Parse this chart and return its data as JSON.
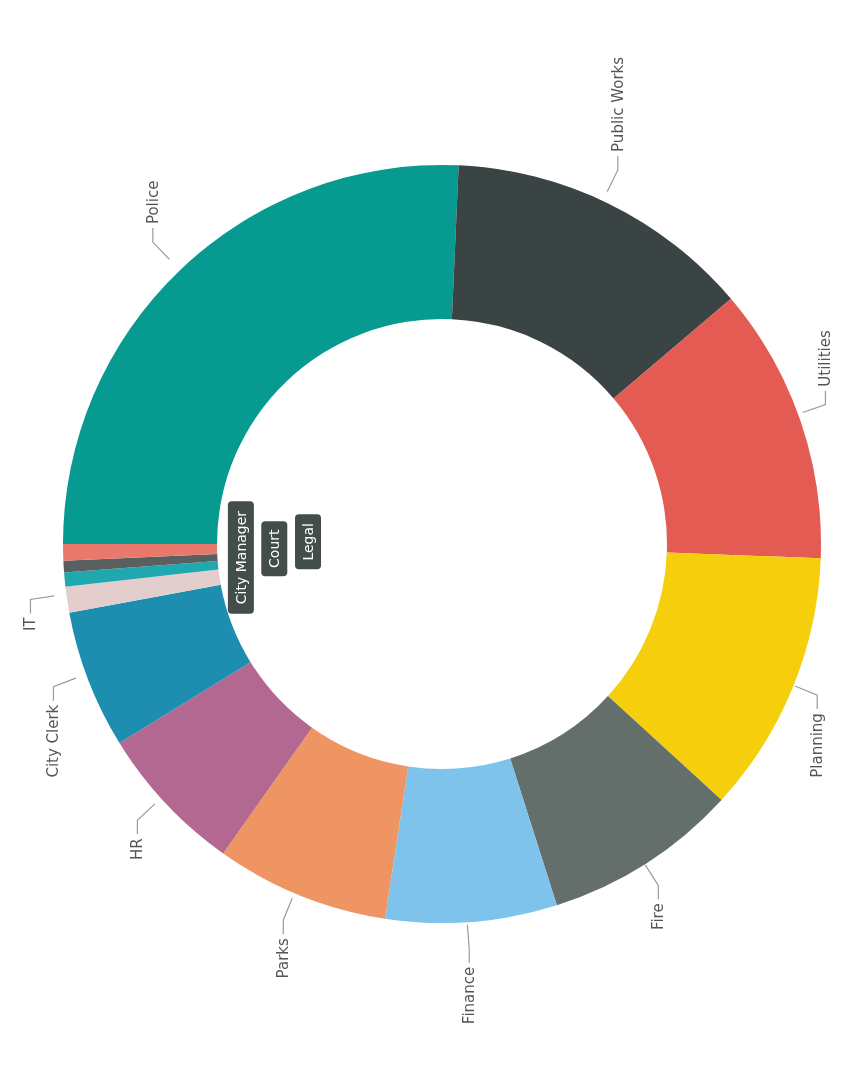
{
  "chart_data": {
    "type": "donut",
    "categories": [
      "Police",
      "Public Works",
      "Utilities",
      "Planning",
      "Fire",
      "Finance",
      "Parks",
      "HR",
      "City Clerk",
      "IT",
      "City Manager",
      "Court",
      "Legal"
    ],
    "values": [
      25.7,
      13.1,
      11.8,
      11.2,
      8.3,
      7.3,
      7.4,
      6.4,
      5.9,
      1.1,
      0.6,
      0.5,
      0.7
    ],
    "colors": [
      "#079a91",
      "#3b4444",
      "#e35b52",
      "#f5cf0c",
      "#646e6b",
      "#7ec3ec",
      "#ef9463",
      "#b26891",
      "#1e8eb0",
      "#e3cdcd",
      "#20a8b0",
      "#5a6060",
      "#e8796c"
    ]
  }
}
